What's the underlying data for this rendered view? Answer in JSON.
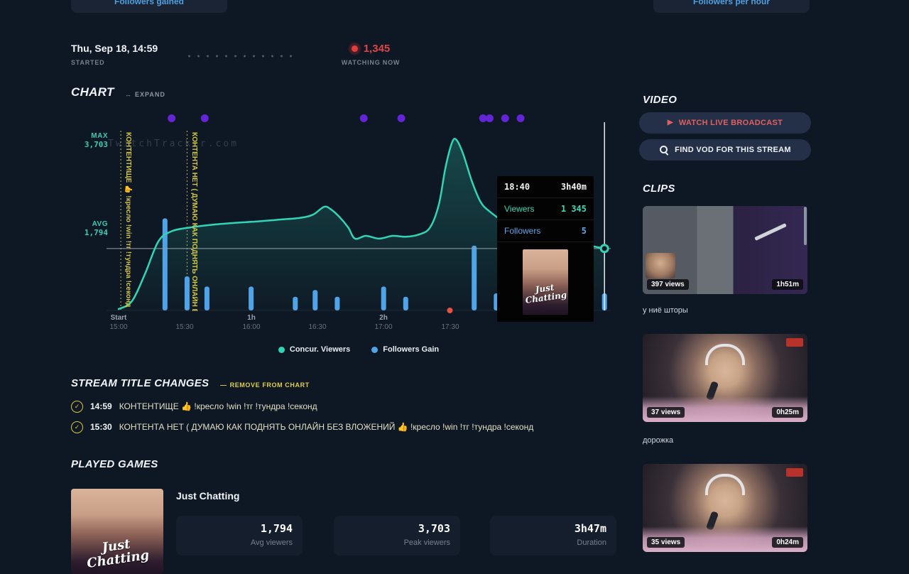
{
  "icons": {
    "check": "✓",
    "expand": "↔",
    "play": "▶",
    "remove": "—"
  },
  "top_buttons": {
    "left": "Followers gained",
    "right": "Followers per hour"
  },
  "header": {
    "started_time": "Thu, Sep 18, 14:59",
    "started_label": "STARTED",
    "watching_count": "1,345",
    "watching_label": "WATCHING NOW"
  },
  "chart_section": {
    "title": "CHART",
    "expand_label": "EXPAND",
    "watermark": "TwitchTracker.com",
    "legend": [
      {
        "label": "Concur. Viewers",
        "color": "#2fd6b5"
      },
      {
        "label": "Followers Gain",
        "color": "#4fa3e6"
      }
    ],
    "tooltip": {
      "time": "18:40",
      "elapsed": "3h40m",
      "viewers_label": "Viewers",
      "viewers_value": "1 345",
      "followers_label": "Followers",
      "followers_value": "5",
      "game": "Just Chatting"
    }
  },
  "chart_data": {
    "type": "line",
    "x_unit": "minutes_from_start",
    "x_range": [
      0,
      228
    ],
    "y_range": [
      0,
      3703
    ],
    "grid": false,
    "legend_position": "bottom",
    "y_axis": {
      "max_label": "MAX",
      "max_value": "3,703",
      "avg_label": "AVG",
      "avg_value": "1,794",
      "max": 3703,
      "avg": 1794
    },
    "x_ticks": [
      {
        "major": "Start",
        "time": "15:00",
        "min": 0
      },
      {
        "major": "",
        "time": "15:30",
        "min": 30
      },
      {
        "major": "1h",
        "time": "16:00",
        "min": 60
      },
      {
        "major": "",
        "time": "16:30",
        "min": 90
      },
      {
        "major": "2h",
        "time": "17:00",
        "min": 120
      },
      {
        "major": "",
        "time": "17:30",
        "min": 150
      }
    ],
    "series": [
      {
        "name": "Concur. Viewers",
        "type": "area-line",
        "color": "#2fd6b5",
        "points": [
          [
            0,
            30
          ],
          [
            6,
            200
          ],
          [
            12,
            800
          ],
          [
            18,
            1500
          ],
          [
            24,
            1720
          ],
          [
            32,
            1800
          ],
          [
            42,
            1860
          ],
          [
            52,
            1900
          ],
          [
            62,
            1930
          ],
          [
            72,
            1970
          ],
          [
            82,
            2010
          ],
          [
            88,
            2080
          ],
          [
            93,
            2250
          ],
          [
            96,
            2200
          ],
          [
            100,
            2030
          ],
          [
            104,
            1800
          ],
          [
            107,
            1560
          ],
          [
            112,
            1620
          ],
          [
            118,
            1560
          ],
          [
            124,
            1620
          ],
          [
            130,
            1600
          ],
          [
            136,
            1650
          ],
          [
            141,
            1800
          ],
          [
            145,
            2300
          ],
          [
            148,
            3100
          ],
          [
            151,
            3650
          ],
          [
            153,
            3703
          ],
          [
            156,
            3400
          ],
          [
            160,
            2800
          ],
          [
            164,
            2350
          ],
          [
            168,
            2150
          ],
          [
            174,
            1950
          ],
          [
            182,
            1800
          ],
          [
            192,
            1650
          ],
          [
            202,
            1520
          ],
          [
            212,
            1420
          ],
          [
            220,
            1345
          ]
        ]
      },
      {
        "name": "Followers Gain",
        "type": "bar",
        "color": "#4fa3e6",
        "points": [
          [
            21,
            27
          ],
          [
            31,
            10
          ],
          [
            40,
            7
          ],
          [
            60,
            7
          ],
          [
            80,
            4
          ],
          [
            89,
            6
          ],
          [
            99,
            4
          ],
          [
            120,
            7
          ],
          [
            130,
            4
          ],
          [
            161,
            19
          ],
          [
            171,
            5
          ],
          [
            220,
            5
          ]
        ]
      }
    ],
    "clip_markers_min": [
      24,
      39,
      111,
      128,
      165,
      168,
      175,
      182
    ],
    "title_change_markers": [
      {
        "min": 1,
        "label": "КОНТЕНТИЩЕ 👍 !кресло !win !тг !тундра !секонд"
      },
      {
        "min": 31,
        "label": "КОНТЕНТА НЕТ ( ДУМАЮ КАК ПОДНЯТЬ ОНЛАЙН БЕЗ ВЛОЖЕНИЙ"
      }
    ],
    "event_marker_min": 150,
    "current": {
      "min": 220,
      "viewers": 1345,
      "followers": 5
    }
  },
  "title_changes": {
    "title": "STREAM TITLE CHANGES",
    "remove_label": "REMOVE FROM CHART",
    "items": [
      {
        "time": "14:59",
        "text": "КОНТЕНТИЩЕ 👍 !кресло !win !тг !тундра !секонд"
      },
      {
        "time": "15:30",
        "text": "КОНТЕНТА НЕТ ( ДУМАЮ КАК ПОДНЯТЬ ОНЛАЙН БЕЗ ВЛОЖЕНИЙ 👍 !кресло !win !тг !тундра !секонд"
      }
    ]
  },
  "played_games": {
    "title": "PLAYED GAMES",
    "games": [
      {
        "name": "Just Chatting",
        "stats": [
          {
            "value": "1,794",
            "label": "Avg viewers"
          },
          {
            "value": "3,703",
            "label": "Peak viewers"
          },
          {
            "value": "3h47m",
            "label": "Duration"
          }
        ]
      }
    ]
  },
  "video_section": {
    "title": "VIDEO",
    "watch_live": "WATCH LIVE BROADCAST",
    "find_vod": "FIND VOD FOR THIS STREAM"
  },
  "clips_section": {
    "title": "CLIPS",
    "clips": [
      {
        "views": "397 views",
        "duration": "1h51m",
        "caption": "у ниё шторы"
      },
      {
        "views": "37 views",
        "duration": "0h25m",
        "caption": "дорожка"
      },
      {
        "views": "35 views",
        "duration": "0h24m",
        "caption": ""
      }
    ]
  }
}
